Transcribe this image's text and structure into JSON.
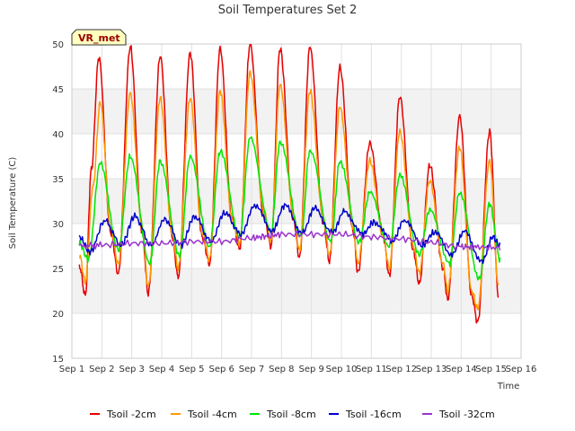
{
  "chart_data": {
    "type": "line",
    "title": "Soil Temperatures Set 2",
    "xlabel": "Time",
    "ylabel": "Soil Temperature (C)",
    "station_label": "VR_met",
    "ylim": [
      15,
      50
    ],
    "yticks": [
      15,
      20,
      25,
      30,
      35,
      40,
      45,
      50
    ],
    "xlim": [
      0,
      15
    ],
    "xticks": [
      {
        "value": 0,
        "label": "Sep 1"
      },
      {
        "value": 1,
        "label": "Sep 2"
      },
      {
        "value": 2,
        "label": "Sep 3"
      },
      {
        "value": 3,
        "label": "Sep 4"
      },
      {
        "value": 4,
        "label": "Sep 5"
      },
      {
        "value": 5,
        "label": "Sep 6"
      },
      {
        "value": 6,
        "label": "Sep 7"
      },
      {
        "value": 7,
        "label": "Sep 8"
      },
      {
        "value": 8,
        "label": "Sep 9"
      },
      {
        "value": 9,
        "label": "Sep 10"
      },
      {
        "value": 10,
        "label": "Sep 11"
      },
      {
        "value": 11,
        "label": "Sep 12"
      },
      {
        "value": 12,
        "label": "Sep 13"
      },
      {
        "value": 13,
        "label": "Sep 14"
      },
      {
        "value": 14,
        "label": "Sep 15"
      },
      {
        "value": 15,
        "label": "Sep 16"
      }
    ],
    "grid": true,
    "legend_position": "bottom",
    "series": [
      {
        "name": "Tsoil -2cm",
        "color": "#e60000",
        "points": [
          [
            0.25,
            25.3
          ],
          [
            0.45,
            22.0
          ],
          [
            0.65,
            36.0
          ],
          [
            0.9,
            48.5
          ],
          [
            1.3,
            29.0
          ],
          [
            1.55,
            24.4
          ],
          [
            1.95,
            49.7
          ],
          [
            2.35,
            29.0
          ],
          [
            2.55,
            22.2
          ],
          [
            2.95,
            48.7
          ],
          [
            3.35,
            28.5
          ],
          [
            3.55,
            24.0
          ],
          [
            3.95,
            49.0
          ],
          [
            4.35,
            28.5
          ],
          [
            4.6,
            25.5
          ],
          [
            4.95,
            49.5
          ],
          [
            5.35,
            30.5
          ],
          [
            5.6,
            27.2
          ],
          [
            5.95,
            50.0
          ],
          [
            6.4,
            31.0
          ],
          [
            6.65,
            27.5
          ],
          [
            6.95,
            49.5
          ],
          [
            7.4,
            30.5
          ],
          [
            7.6,
            26.2
          ],
          [
            7.95,
            49.7
          ],
          [
            8.4,
            30.0
          ],
          [
            8.6,
            25.8
          ],
          [
            8.95,
            47.4
          ],
          [
            9.4,
            29.0
          ],
          [
            9.55,
            24.5
          ],
          [
            9.95,
            39.0
          ],
          [
            10.4,
            28.5
          ],
          [
            10.6,
            24.2
          ],
          [
            10.95,
            44.2
          ],
          [
            11.4,
            27.0
          ],
          [
            11.6,
            23.3
          ],
          [
            11.95,
            36.5
          ],
          [
            12.4,
            25.0
          ],
          [
            12.55,
            21.5
          ],
          [
            12.95,
            42.0
          ],
          [
            13.35,
            22.0
          ],
          [
            13.55,
            19.0
          ],
          [
            13.95,
            40.3
          ],
          [
            14.25,
            21.8
          ]
        ]
      },
      {
        "name": "Tsoil -4cm",
        "color": "#ff9900",
        "points": [
          [
            0.25,
            26.5
          ],
          [
            0.45,
            23.5
          ],
          [
            0.7,
            34.0
          ],
          [
            0.95,
            43.5
          ],
          [
            1.3,
            29.5
          ],
          [
            1.55,
            25.5
          ],
          [
            1.95,
            44.5
          ],
          [
            2.35,
            29.5
          ],
          [
            2.55,
            23.0
          ],
          [
            2.95,
            44.0
          ],
          [
            3.35,
            29.0
          ],
          [
            3.55,
            25.0
          ],
          [
            3.95,
            44.0
          ],
          [
            4.35,
            29.0
          ],
          [
            4.6,
            26.0
          ],
          [
            4.95,
            44.8
          ],
          [
            5.35,
            30.5
          ],
          [
            5.6,
            27.8
          ],
          [
            5.95,
            46.8
          ],
          [
            6.4,
            31.5
          ],
          [
            6.65,
            28.0
          ],
          [
            6.95,
            45.5
          ],
          [
            7.4,
            31.0
          ],
          [
            7.6,
            27.0
          ],
          [
            7.95,
            44.8
          ],
          [
            8.4,
            30.5
          ],
          [
            8.6,
            26.5
          ],
          [
            8.95,
            43.0
          ],
          [
            9.4,
            29.5
          ],
          [
            9.55,
            25.5
          ],
          [
            9.95,
            37.0
          ],
          [
            10.4,
            28.5
          ],
          [
            10.6,
            25.0
          ],
          [
            10.95,
            40.3
          ],
          [
            11.4,
            27.5
          ],
          [
            11.6,
            24.5
          ],
          [
            11.95,
            34.8
          ],
          [
            12.4,
            25.5
          ],
          [
            12.55,
            22.5
          ],
          [
            12.95,
            38.5
          ],
          [
            13.35,
            22.5
          ],
          [
            13.55,
            20.5
          ],
          [
            13.95,
            37.0
          ],
          [
            14.25,
            23.0
          ]
        ]
      },
      {
        "name": "Tsoil -8cm",
        "color": "#00e600",
        "points": [
          [
            0.25,
            27.8
          ],
          [
            0.55,
            26.0
          ],
          [
            0.95,
            36.8
          ],
          [
            1.55,
            27.0
          ],
          [
            1.95,
            37.5
          ],
          [
            2.6,
            25.5
          ],
          [
            2.95,
            37.0
          ],
          [
            3.6,
            26.5
          ],
          [
            3.95,
            37.5
          ],
          [
            4.6,
            27.5
          ],
          [
            4.95,
            38.0
          ],
          [
            5.6,
            28.5
          ],
          [
            5.95,
            39.5
          ],
          [
            6.65,
            29.0
          ],
          [
            6.95,
            39.0
          ],
          [
            7.65,
            28.5
          ],
          [
            7.95,
            38.2
          ],
          [
            8.65,
            28.0
          ],
          [
            8.95,
            37.0
          ],
          [
            9.6,
            28.0
          ],
          [
            9.95,
            33.5
          ],
          [
            10.6,
            27.5
          ],
          [
            10.95,
            35.3
          ],
          [
            11.6,
            26.5
          ],
          [
            11.95,
            31.5
          ],
          [
            12.6,
            25.5
          ],
          [
            12.95,
            33.5
          ],
          [
            13.6,
            23.8
          ],
          [
            13.95,
            32.2
          ],
          [
            14.3,
            26.0
          ]
        ]
      },
      {
        "name": "Tsoil -16cm",
        "color": "#0000cc",
        "points": [
          [
            0.25,
            28.5
          ],
          [
            0.6,
            26.8
          ],
          [
            1.1,
            30.3
          ],
          [
            1.65,
            27.6
          ],
          [
            2.1,
            30.8
          ],
          [
            2.65,
            27.6
          ],
          [
            3.1,
            30.5
          ],
          [
            3.65,
            27.6
          ],
          [
            4.1,
            30.8
          ],
          [
            4.65,
            28.0
          ],
          [
            5.1,
            31.2
          ],
          [
            5.65,
            28.8
          ],
          [
            6.1,
            32.0
          ],
          [
            6.7,
            29.2
          ],
          [
            7.1,
            32.0
          ],
          [
            7.7,
            29.0
          ],
          [
            8.1,
            31.7
          ],
          [
            8.7,
            29.0
          ],
          [
            9.1,
            31.4
          ],
          [
            9.7,
            28.8
          ],
          [
            10.1,
            30.2
          ],
          [
            10.7,
            28.0
          ],
          [
            11.1,
            30.4
          ],
          [
            11.7,
            27.6
          ],
          [
            12.1,
            29.0
          ],
          [
            12.7,
            26.6
          ],
          [
            13.1,
            29.1
          ],
          [
            13.7,
            25.8
          ],
          [
            14.05,
            28.5
          ],
          [
            14.3,
            27.5
          ]
        ]
      },
      {
        "name": "Tsoil -32cm",
        "color": "#9933cc",
        "points": [
          [
            0.25,
            27.5
          ],
          [
            1.0,
            27.6
          ],
          [
            2.0,
            27.8
          ],
          [
            3.0,
            27.8
          ],
          [
            4.0,
            28.0
          ],
          [
            5.0,
            28.0
          ],
          [
            6.0,
            28.4
          ],
          [
            6.5,
            28.6
          ],
          [
            7.0,
            28.8
          ],
          [
            8.0,
            28.8
          ],
          [
            9.0,
            28.8
          ],
          [
            10.0,
            28.5
          ],
          [
            11.0,
            28.3
          ],
          [
            12.0,
            27.9
          ],
          [
            13.0,
            27.4
          ],
          [
            13.5,
            27.4
          ],
          [
            14.3,
            27.3
          ]
        ]
      }
    ]
  }
}
